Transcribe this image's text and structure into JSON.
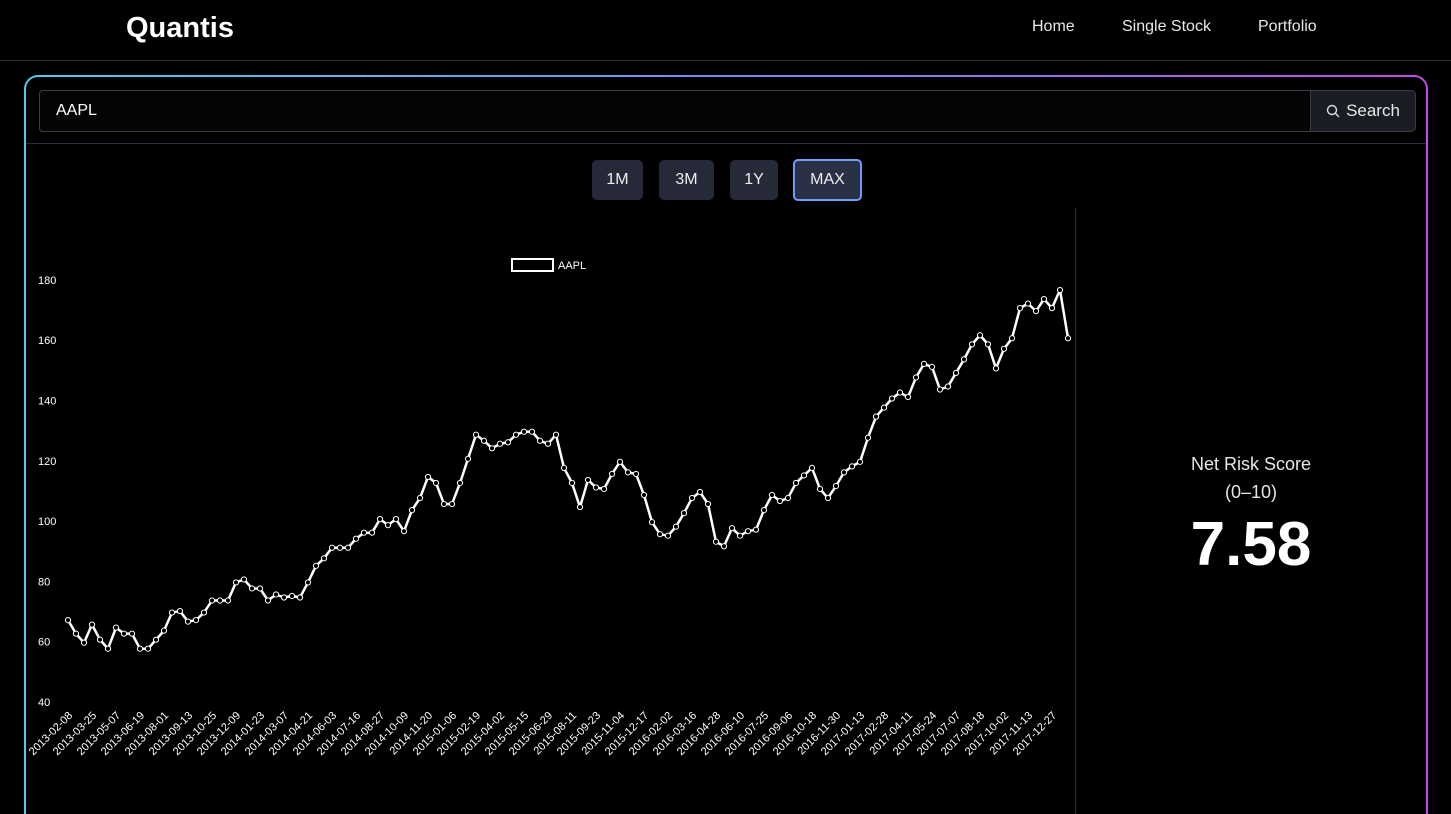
{
  "header": {
    "brand": "Quantis",
    "nav": [
      "Home",
      "Single Stock",
      "Portfolio"
    ]
  },
  "search": {
    "value": "AAPL",
    "button": "Search"
  },
  "ranges": [
    "1M",
    "3M",
    "1Y",
    "MAX"
  ],
  "risk": {
    "label": "Net Risk Score",
    "range": "(0–10)",
    "score": 7.58
  },
  "chart_data": {
    "type": "line",
    "categories": [
      "2013-02-08",
      null,
      null,
      "2013-03-25",
      null,
      null,
      "2013-05-07",
      null,
      null,
      "2013-06-19",
      null,
      null,
      "2013-08-01",
      null,
      null,
      "2013-09-13",
      null,
      null,
      "2013-10-25",
      null,
      null,
      "2013-12-09",
      null,
      null,
      "2014-01-23",
      null,
      null,
      "2014-03-07",
      null,
      null,
      "2014-04-21",
      null,
      null,
      "2014-06-03",
      null,
      null,
      "2014-07-16",
      null,
      null,
      "2014-08-27",
      null,
      null,
      "2014-10-09",
      null,
      null,
      "2014-11-20",
      null,
      null,
      "2015-01-06",
      null,
      null,
      "2015-02-19",
      null,
      null,
      "2015-04-02",
      null,
      null,
      "2015-05-15",
      null,
      null,
      "2015-06-29",
      null,
      null,
      "2015-08-11",
      null,
      null,
      "2015-09-23",
      null,
      null,
      "2015-11-04",
      null,
      null,
      "2015-12-17",
      null,
      null,
      "2016-02-02",
      null,
      null,
      "2016-03-16",
      null,
      null,
      "2016-04-28",
      null,
      null,
      "2016-06-10",
      null,
      null,
      "2016-07-25",
      null,
      null,
      "2016-09-06",
      null,
      null,
      "2016-10-18",
      null,
      null,
      "2016-11-30",
      null,
      null,
      "2017-01-13",
      null,
      null,
      "2017-02-28",
      null,
      null,
      "2017-04-11",
      null,
      null,
      "2017-05-24",
      null,
      null,
      "2017-07-07",
      null,
      null,
      "2017-08-18",
      null,
      null,
      "2017-10-02",
      null,
      null,
      "2017-11-13",
      null,
      null,
      "2017-12-27",
      null,
      null
    ],
    "series": [
      {
        "name": "AAPL",
        "color": "#ffffff",
        "values": [
          67.5,
          63,
          60,
          66,
          61,
          58,
          65,
          63,
          63,
          58,
          58,
          61,
          64,
          70,
          70.5,
          67,
          67.5,
          70,
          74,
          74,
          74,
          80,
          81,
          78,
          78,
          74,
          76,
          75,
          75.5,
          75,
          80,
          85.5,
          88,
          91.5,
          91.5,
          91.5,
          94.5,
          96.5,
          96.5,
          101,
          99,
          101,
          97,
          104,
          108,
          115,
          113,
          106,
          106,
          113,
          121,
          129,
          127,
          124.5,
          126,
          126.5,
          129,
          130,
          130,
          127,
          126,
          129,
          118,
          113,
          105,
          114,
          111.5,
          111,
          116,
          120,
          116.5,
          116,
          109,
          100,
          96,
          95.5,
          98.5,
          103,
          108,
          110,
          106,
          93.5,
          92,
          98,
          95.5,
          97,
          97.5,
          104,
          109,
          107,
          108,
          113,
          115.5,
          118,
          111,
          108,
          112,
          116.5,
          118.5,
          120,
          128,
          135,
          138,
          141,
          143,
          141.5,
          148,
          152.5,
          151.5,
          144,
          145,
          149.5,
          154,
          159,
          162,
          159,
          151,
          157.5,
          161,
          171,
          172.5,
          170,
          174,
          171,
          177,
          161
        ]
      }
    ],
    "ylim": [
      40,
      180
    ],
    "yticks": [
      40,
      60,
      80,
      100,
      120,
      140,
      160,
      180
    ],
    "grid": false
  }
}
